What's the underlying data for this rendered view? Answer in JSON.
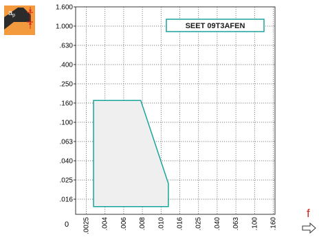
{
  "chart_data": {
    "type": "area",
    "grade_label": "SEET 09T3AFEN",
    "x_axis_symbol": "f",
    "y_axis_symbol": "a",
    "y_axis_symbol_subscript": "p",
    "origin_label": "0",
    "x_tick_labels": [
      ".0025",
      ".004",
      ".006",
      ".008",
      ".010",
      ".016",
      ".025",
      ".040",
      ".063",
      ".100",
      ".160"
    ],
    "y_tick_labels": [
      "1.600",
      "1.000",
      ".630",
      ".400",
      ".250",
      ".160",
      ".100",
      ".063",
      ".040",
      ".025",
      ".016"
    ],
    "x_scale": "categorical-log",
    "y_scale": "log",
    "grid": true,
    "region": {
      "name": "",
      "points": [
        {
          "f": 0.003,
          "ap": 0.17
        },
        {
          "f": 0.0078,
          "ap": 0.17
        },
        {
          "f": 0.012,
          "ap": 0.023
        },
        {
          "f": 0.012,
          "ap": 0.0135
        },
        {
          "f": 0.003,
          "ap": 0.0135
        }
      ]
    },
    "colors": {
      "outline": "#17a39a",
      "fill": "#efefef",
      "grid": "#5a5a5a",
      "icon": "#f39a3e",
      "feed_letter": "#d7261e",
      "insert_dark": "#2b2b2b"
    }
  }
}
